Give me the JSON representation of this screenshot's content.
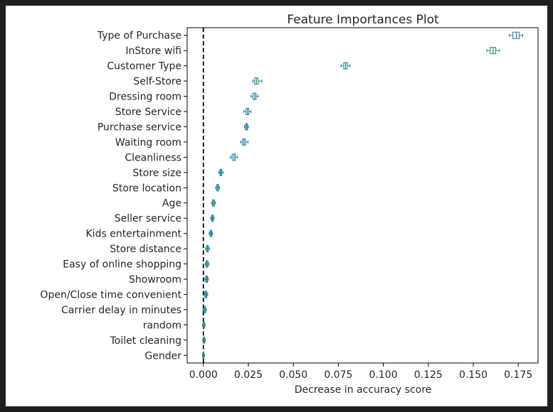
{
  "chart_data": {
    "type": "boxplot",
    "orientation": "horizontal",
    "title": "Feature Importances Plot",
    "xlabel": "Decrease in accuracy score",
    "ylabel": "",
    "xlim": [
      -0.009,
      0.186
    ],
    "xticks": [
      0.0,
      0.025,
      0.05,
      0.075,
      0.1,
      0.125,
      0.15,
      0.175
    ],
    "xtick_labels": [
      "0.000",
      "0.025",
      "0.050",
      "0.075",
      "0.100",
      "0.125",
      "0.150",
      "0.175"
    ],
    "reference_line": {
      "x": 0.0,
      "style": "dashed",
      "color": "#000000"
    },
    "grid": false,
    "box_color": "#1f77b4",
    "median_color": "#2ca02c",
    "categories": [
      "Type of Purchase",
      "InStore wifi",
      "Customer Type",
      "Self-Store",
      "Dressing room",
      "Store Service",
      "Purchase service",
      "Waiting room",
      "Cleanliness",
      "Store size",
      "Store location",
      "Age",
      "Seller service",
      "Kids entertainment",
      "Store distance",
      "Easy of online shopping",
      "Showroom ",
      "Open/Close time convenient",
      "Carrier delay in minutes",
      "random",
      "Toilet cleaning",
      "Gender"
    ],
    "boxes": [
      {
        "min": 0.17,
        "q1": 0.172,
        "median": 0.174,
        "q3": 0.1755,
        "max": 0.1775
      },
      {
        "min": 0.1575,
        "q1": 0.1595,
        "median": 0.161,
        "q3": 0.1625,
        "max": 0.1645
      },
      {
        "min": 0.0765,
        "q1": 0.078,
        "median": 0.079,
        "q3": 0.08,
        "max": 0.0815
      },
      {
        "min": 0.0275,
        "q1": 0.0285,
        "median": 0.0295,
        "q3": 0.0305,
        "max": 0.0325
      },
      {
        "min": 0.0265,
        "q1": 0.0275,
        "median": 0.0285,
        "q3": 0.0293,
        "max": 0.0305
      },
      {
        "min": 0.0225,
        "q1": 0.0237,
        "median": 0.0245,
        "q3": 0.0253,
        "max": 0.0265
      },
      {
        "min": 0.0228,
        "q1": 0.0234,
        "median": 0.024,
        "q3": 0.0245,
        "max": 0.025
      },
      {
        "min": 0.0208,
        "q1": 0.0218,
        "median": 0.0226,
        "q3": 0.0234,
        "max": 0.0248
      },
      {
        "min": 0.015,
        "q1": 0.016,
        "median": 0.017,
        "q3": 0.0178,
        "max": 0.019
      },
      {
        "min": 0.0085,
        "q1": 0.0092,
        "median": 0.0097,
        "q3": 0.0102,
        "max": 0.011
      },
      {
        "min": 0.0068,
        "q1": 0.0074,
        "median": 0.008,
        "q3": 0.0084,
        "max": 0.009
      },
      {
        "min": 0.0045,
        "q1": 0.0051,
        "median": 0.0056,
        "q3": 0.0061,
        "max": 0.0067
      },
      {
        "min": 0.004,
        "q1": 0.0046,
        "median": 0.005,
        "q3": 0.0055,
        "max": 0.006
      },
      {
        "min": 0.0032,
        "q1": 0.0037,
        "median": 0.0042,
        "q3": 0.0046,
        "max": 0.0051
      },
      {
        "min": 0.0012,
        "q1": 0.0018,
        "median": 0.0023,
        "q3": 0.0028,
        "max": 0.0034
      },
      {
        "min": 0.001,
        "q1": 0.0015,
        "median": 0.002,
        "q3": 0.0025,
        "max": 0.003
      },
      {
        "min": 0.0008,
        "q1": 0.0013,
        "median": 0.0018,
        "q3": 0.0023,
        "max": 0.0028
      },
      {
        "min": 0.0004,
        "q1": 0.0009,
        "median": 0.0014,
        "q3": 0.0019,
        "max": 0.0024
      },
      {
        "min": -0.0002,
        "q1": 0.0003,
        "median": 0.0008,
        "q3": 0.0012,
        "max": 0.0017
      },
      {
        "min": -0.0004,
        "q1": 0.0,
        "median": 0.0003,
        "q3": 0.0006,
        "max": 0.001
      },
      {
        "min": -0.0003,
        "q1": 0.0001,
        "median": 0.0004,
        "q3": 0.0007,
        "max": 0.0011
      },
      {
        "min": -0.0005,
        "q1": -0.0002,
        "median": 0.0001,
        "q3": 0.0003,
        "max": 0.0006
      }
    ]
  }
}
